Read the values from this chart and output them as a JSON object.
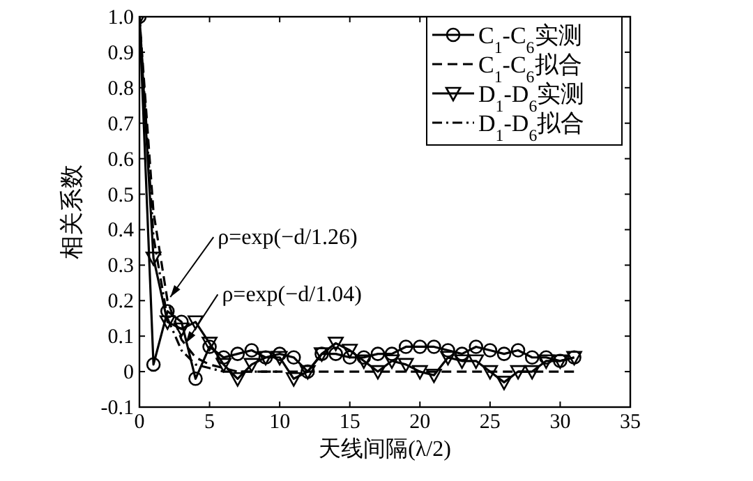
{
  "chart_data": {
    "type": "line",
    "xlabel": "天线间隔(λ/2)",
    "ylabel": "相关系数",
    "xlim": [
      0,
      35
    ],
    "xticks": [
      0,
      5,
      10,
      15,
      20,
      25,
      30,
      35
    ],
    "ylim": [
      -0.1,
      1
    ],
    "yticks": [
      -0.1,
      0,
      0.1,
      0.2,
      0.3,
      0.4,
      0.5,
      0.6,
      0.7,
      0.8,
      0.9,
      {
        "value": 1,
        "label": "1.0"
      }
    ],
    "grid": false,
    "legend": "top right",
    "series": [
      {
        "name": "C$_{1}$-C$_{6}$实测",
        "color": "#000000",
        "marker": "circle",
        "line_style": "solid",
        "x": [
          0,
          1,
          2,
          3,
          4,
          5,
          6,
          7,
          8,
          9,
          10,
          11,
          12,
          13,
          14,
          15,
          16,
          17,
          18,
          19,
          20,
          21,
          22,
          23,
          24,
          25,
          26,
          27,
          28,
          29,
          30,
          31
        ],
        "values": [
          1.0,
          0.02,
          0.17,
          0.14,
          -0.02,
          0.07,
          0.04,
          0.05,
          0.06,
          0.04,
          0.05,
          0.04,
          0.0,
          0.05,
          0.05,
          0.04,
          0.04,
          0.05,
          0.05,
          0.07,
          0.07,
          0.07,
          0.06,
          0.05,
          0.07,
          0.06,
          0.05,
          0.06,
          0.04,
          0.04,
          0.03,
          0.04
        ]
      },
      {
        "name": "C$_{1}$-C$_{6}$拟合",
        "color": "#000000",
        "marker": "none",
        "line_style": "dashed",
        "x": [
          0,
          1,
          2,
          3,
          4,
          5,
          6,
          7,
          31
        ],
        "values": [
          1.0,
          0.45,
          0.2,
          0.09,
          0.04,
          0.02,
          0.01,
          0.0,
          0.0
        ]
      },
      {
        "name": "D$_{1}$-D$_{6}$实测",
        "color": "#000000",
        "marker": "triangle",
        "line_style": "solid",
        "x": [
          0,
          1,
          2,
          3,
          4,
          5,
          6,
          7,
          8,
          9,
          10,
          11,
          12,
          13,
          14,
          15,
          16,
          17,
          18,
          19,
          20,
          21,
          22,
          23,
          24,
          25,
          26,
          27,
          28,
          29,
          30,
          31
        ],
        "values": [
          1.0,
          0.32,
          0.14,
          0.12,
          0.14,
          0.08,
          0.02,
          -0.02,
          0.02,
          0.04,
          0.04,
          -0.02,
          0.0,
          0.05,
          0.08,
          0.06,
          0.03,
          0.0,
          0.03,
          0.02,
          0.0,
          -0.01,
          0.04,
          0.03,
          0.03,
          0.0,
          -0.03,
          0.0,
          0.0,
          0.03,
          0.03,
          0.04
        ]
      },
      {
        "name": "D$_{1}$-D$_{6}$拟合",
        "color": "#000000",
        "marker": "none",
        "line_style": "dashdot",
        "x": [
          0,
          1,
          2,
          3,
          4,
          5,
          6,
          10
        ],
        "values": [
          1.0,
          0.38,
          0.15,
          0.06,
          0.02,
          0.01,
          0.0,
          0.0
        ]
      }
    ],
    "annotations": [
      {
        "text": "ρ=exp(−d/1.26)",
        "x": 2.2,
        "y": 0.21
      },
      {
        "text": "ρ=exp(−d/1.04)",
        "x": 3.3,
        "y": 0.08
      }
    ]
  }
}
